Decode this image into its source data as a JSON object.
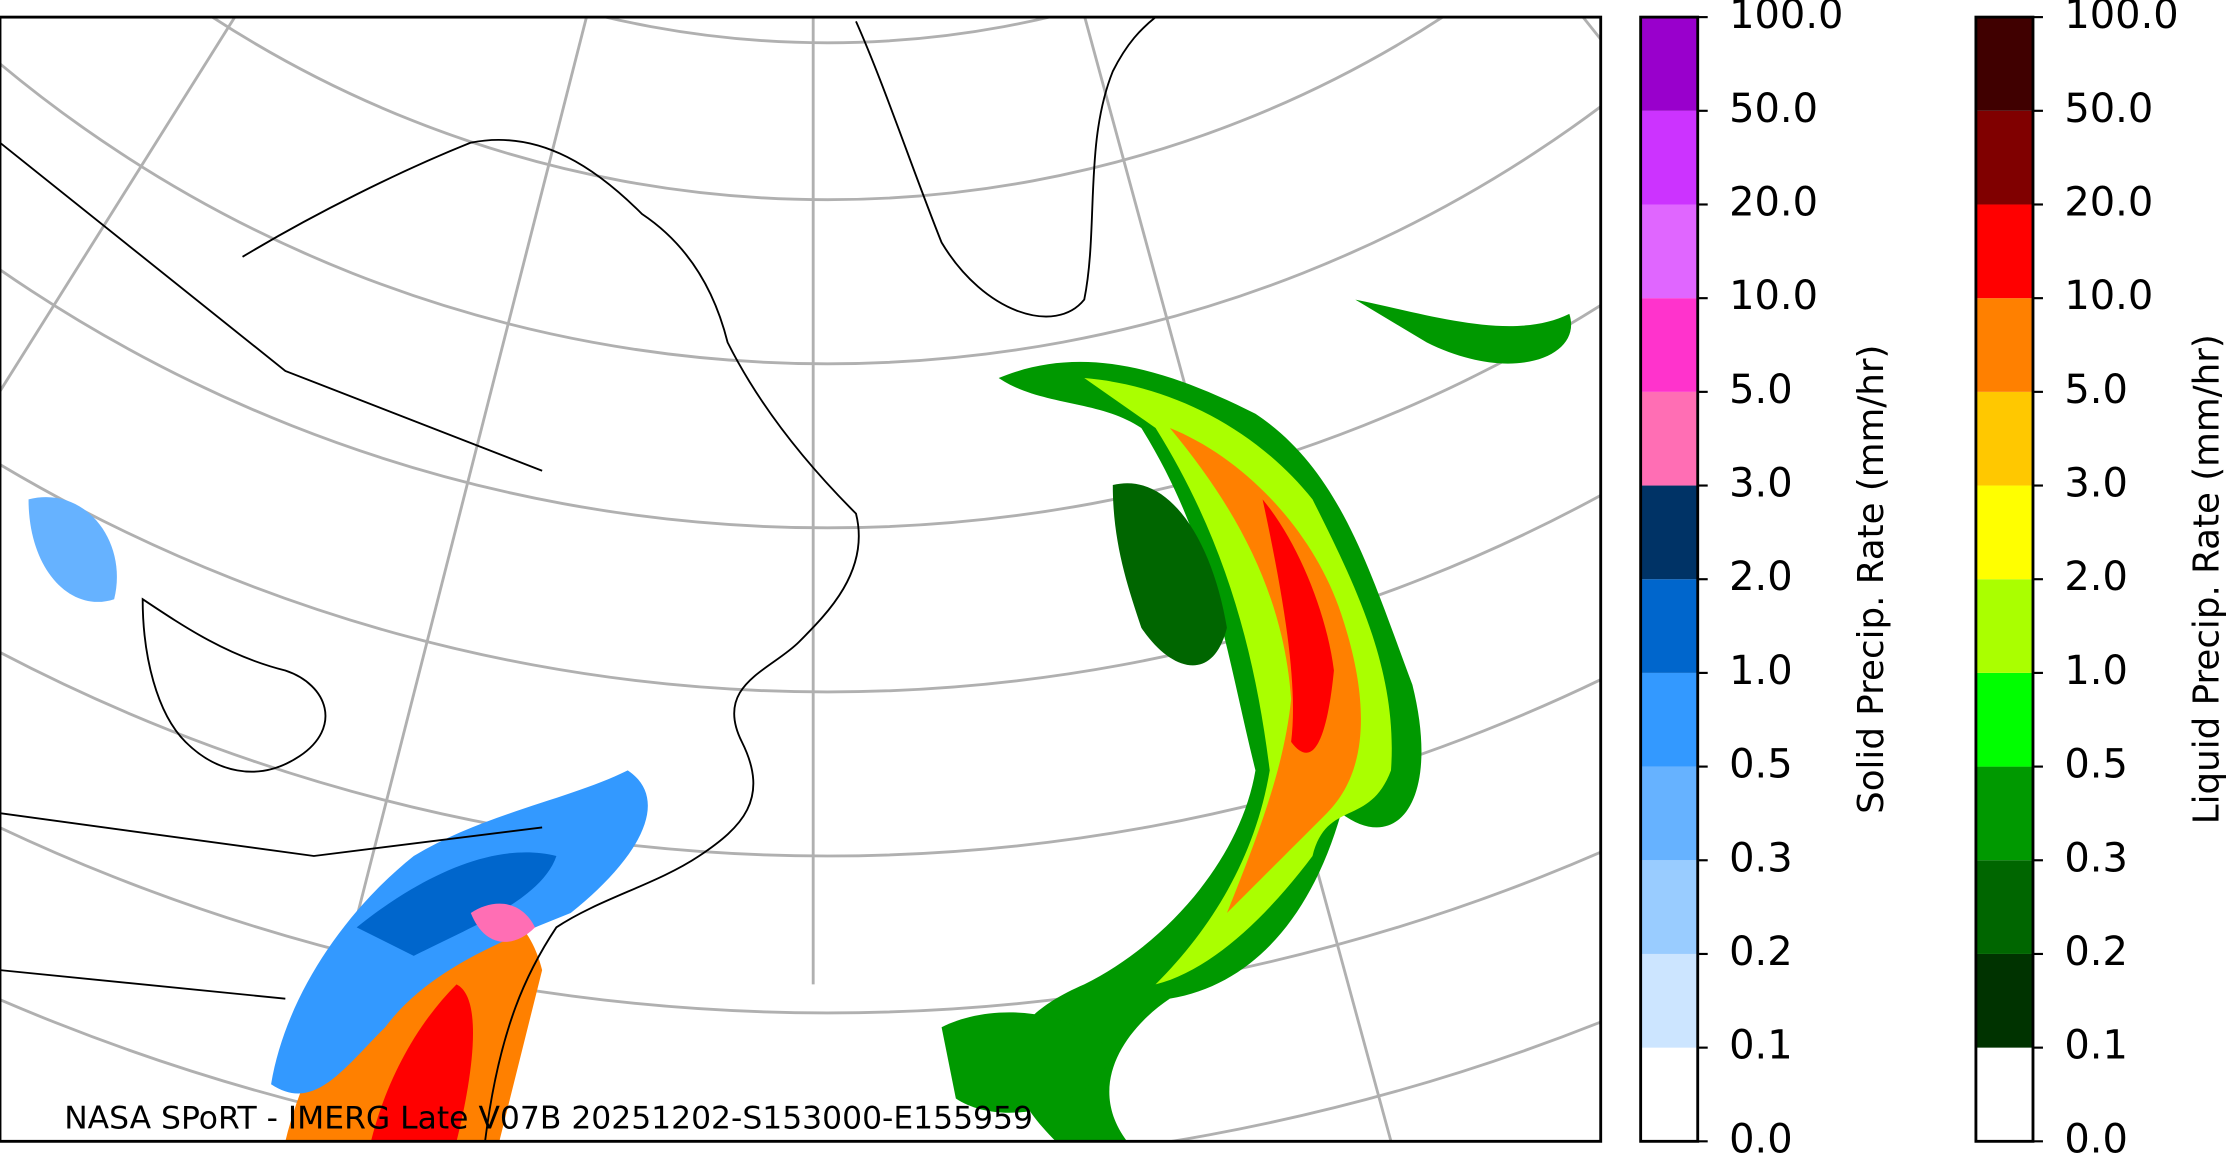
{
  "caption": "NASA SPoRT - IMERG Late V07B 20251202-S153000-E155959",
  "colorbars": [
    {
      "label": "Solid Precip. Rate (mm/hr)",
      "tick_labels": [
        "0.0",
        "0.1",
        "0.2",
        "0.3",
        "0.5",
        "1.0",
        "2.0",
        "3.0",
        "5.0",
        "10.0",
        "20.0",
        "50.0",
        "100.0"
      ],
      "colors": [
        "#ffffff",
        "#cce5ff",
        "#99ccff",
        "#66b2ff",
        "#3399ff",
        "#0066cc",
        "#003366",
        "#ff6eb4",
        "#ff33cc",
        "#e066ff",
        "#cc33ff",
        "#9900cc"
      ]
    },
    {
      "label": "Liquid Precip. Rate (mm/hr)",
      "tick_labels": [
        "0.0",
        "0.1",
        "0.2",
        "0.3",
        "0.5",
        "1.0",
        "2.0",
        "3.0",
        "5.0",
        "10.0",
        "20.0",
        "50.0",
        "100.0"
      ],
      "colors": [
        "#ffffff",
        "#003300",
        "#006600",
        "#009900",
        "#00ff00",
        "#aaff00",
        "#ffff00",
        "#ffc800",
        "#ff8000",
        "#ff0000",
        "#800000",
        "#400000"
      ]
    }
  ]
}
